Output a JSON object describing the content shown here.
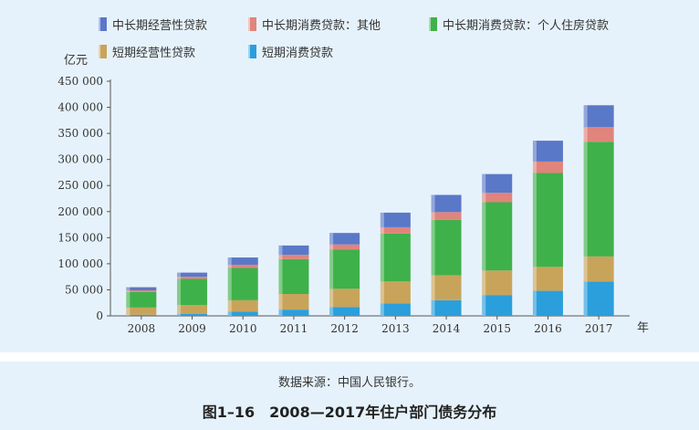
{
  "chart_data": {
    "type": "bar",
    "stacked": true,
    "ylabel": "亿元",
    "xlabel": "年",
    "ylim": [
      0,
      450000
    ],
    "yticks": [
      "0",
      "50 000",
      "100 000",
      "150 000",
      "200 000",
      "250 000",
      "300 000",
      "350 000",
      "400 000",
      "450 000"
    ],
    "grid": false,
    "legend_position": "top",
    "categories": [
      "2008",
      "2009",
      "2010",
      "2011",
      "2012",
      "2013",
      "2014",
      "2015",
      "2016",
      "2017"
    ],
    "series": [
      {
        "name": "短期消费贷款",
        "color": "#2a9fdc",
        "values": [
          2000,
          4000,
          8000,
          12000,
          17000,
          24000,
          30000,
          40000,
          48000,
          66000
        ]
      },
      {
        "name": "短期经营性贷款",
        "color": "#c8a45a",
        "values": [
          14000,
          17000,
          22000,
          30000,
          35000,
          42000,
          48000,
          47000,
          46000,
          48000
        ]
      },
      {
        "name": "中长期消费贷款：个人住房贷款",
        "color": "#3fb14a",
        "values": [
          30000,
          50000,
          62000,
          67000,
          75000,
          92000,
          106000,
          131000,
          180000,
          220000
        ]
      },
      {
        "name": "中长期消费贷款：其他",
        "color": "#e0847c",
        "values": [
          3000,
          4000,
          6000,
          8000,
          10000,
          12000,
          15000,
          18000,
          22000,
          28000
        ]
      },
      {
        "name": "中长期经营性贷款",
        "color": "#5a78c8",
        "values": [
          6000,
          8000,
          14000,
          18000,
          22000,
          28000,
          33000,
          36000,
          40000,
          42000
        ]
      }
    ]
  },
  "legend": [
    {
      "label": "中长期经营性贷款",
      "color": "#5a78c8"
    },
    {
      "label": "中长期消费贷款：其他",
      "color": "#e0847c"
    },
    {
      "label": "中长期消费贷款：个人住房贷款",
      "color": "#3fb14a"
    },
    {
      "label": "短期经营性贷款",
      "color": "#c8a45a"
    },
    {
      "label": "短期消费贷款",
      "color": "#2a9fdc"
    }
  ],
  "caption": {
    "source": "数据来源：中国人民银行。",
    "title": "图1–16　2008—2017年住户部门债务分布"
  }
}
